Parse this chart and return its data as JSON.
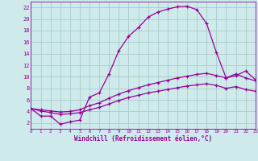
{
  "xlabel": "Windchill (Refroidissement éolien,°C)",
  "bg_color": "#ceeaea",
  "line_color": "#990099",
  "grid_color": "#aacccc",
  "xlim": [
    0,
    23
  ],
  "ylim": [
    1,
    23
  ],
  "xticks": [
    0,
    1,
    2,
    3,
    4,
    5,
    6,
    7,
    8,
    9,
    10,
    11,
    12,
    13,
    14,
    15,
    16,
    17,
    18,
    19,
    20,
    21,
    22,
    23
  ],
  "yticks": [
    2,
    4,
    6,
    8,
    10,
    12,
    14,
    16,
    18,
    20,
    22
  ],
  "line1_x": [
    0,
    1,
    2,
    3,
    4,
    5,
    6,
    7,
    8,
    9,
    10,
    11,
    12,
    13,
    14,
    15,
    16,
    17,
    18,
    19,
    20,
    21,
    22,
    23
  ],
  "line1_y": [
    4.5,
    3.2,
    3.2,
    1.8,
    2.2,
    2.5,
    6.5,
    7.2,
    10.5,
    14.5,
    17.0,
    18.5,
    20.3,
    21.2,
    21.7,
    22.1,
    22.2,
    21.6,
    19.2,
    14.2,
    9.8,
    10.2,
    11.0,
    9.5
  ],
  "line2_x": [
    0,
    1,
    2,
    3,
    4,
    5,
    6,
    7,
    8,
    9,
    10,
    11,
    12,
    13,
    14,
    15,
    16,
    17,
    18,
    19,
    20,
    21,
    22,
    23
  ],
  "line2_y": [
    4.5,
    4.3,
    4.1,
    3.9,
    4.0,
    4.3,
    5.0,
    5.5,
    6.3,
    7.0,
    7.6,
    8.1,
    8.6,
    9.0,
    9.4,
    9.8,
    10.1,
    10.4,
    10.6,
    10.2,
    9.8,
    10.5,
    9.8,
    9.3
  ],
  "line3_x": [
    0,
    1,
    2,
    3,
    4,
    5,
    6,
    7,
    8,
    9,
    10,
    11,
    12,
    13,
    14,
    15,
    16,
    17,
    18,
    19,
    20,
    21,
    22,
    23
  ],
  "line3_y": [
    4.5,
    4.1,
    3.8,
    3.5,
    3.6,
    3.8,
    4.3,
    4.7,
    5.3,
    5.9,
    6.4,
    6.8,
    7.2,
    7.5,
    7.8,
    8.1,
    8.4,
    8.6,
    8.8,
    8.5,
    8.0,
    8.3,
    7.8,
    7.5
  ]
}
